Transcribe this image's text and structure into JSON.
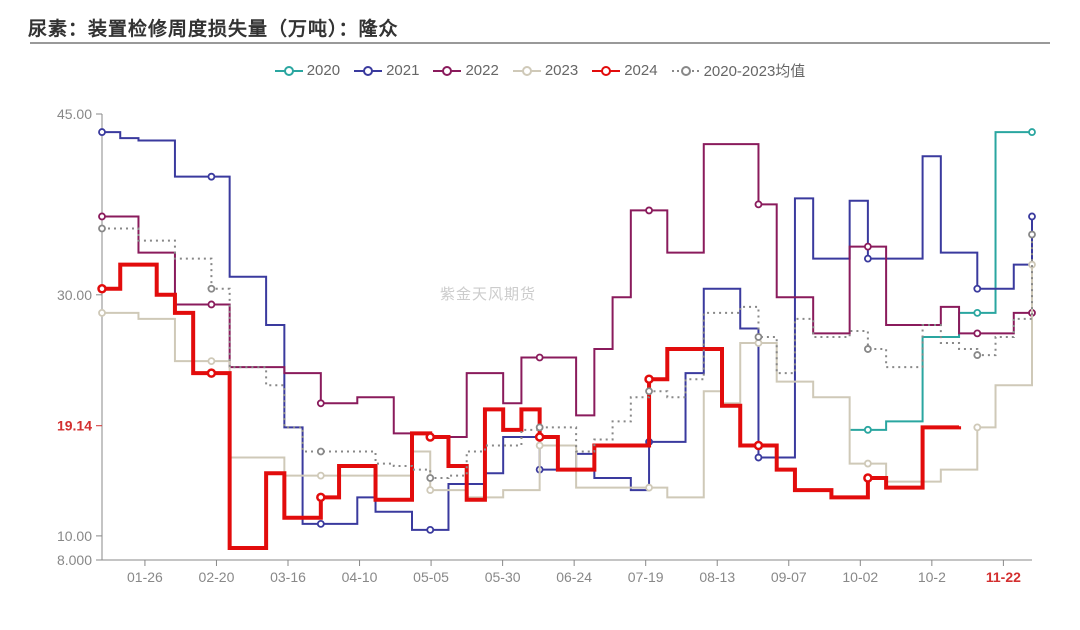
{
  "title": "尿素：装置检修周度损失量（万吨）：隆众",
  "watermark": "紫金天风期货",
  "chart": {
    "type": "line",
    "background_color": "#ffffff",
    "grid_color": "#dddddd",
    "axis_color": "#888888",
    "tick_fontsize": 14,
    "tick_color": "#888888",
    "ylim": [
      8,
      45
    ],
    "yticks": [
      8,
      10,
      19.14,
      30,
      45
    ],
    "ytick_labels": [
      "8.000",
      "10.00",
      "19.14",
      "30.00",
      "45.00"
    ],
    "ytick_colors": [
      "#888888",
      "#888888",
      "#d32f2f",
      "#888888",
      "#888888"
    ],
    "y_highlight": {
      "value": 19.14,
      "label": "19.14",
      "color": "#d32f2f"
    },
    "xticks": [
      "01-26",
      "02-20",
      "03-16",
      "04-10",
      "05-05",
      "05-30",
      "06-24",
      "07-19",
      "08-13",
      "09-07",
      "10-02",
      "10-2",
      "11-22"
    ],
    "x_highlight": {
      "index": 12,
      "label": "11-22",
      "color": "#d32f2f"
    },
    "n_points": 52,
    "series": [
      {
        "name": "2020",
        "color": "#2aa6a0",
        "width": 2,
        "marker": "hollow-circle",
        "step": true,
        "dash": "none",
        "data": [
          null,
          null,
          null,
          null,
          null,
          null,
          null,
          null,
          null,
          null,
          null,
          null,
          null,
          null,
          null,
          null,
          null,
          null,
          null,
          null,
          null,
          null,
          null,
          null,
          null,
          null,
          null,
          null,
          null,
          null,
          null,
          null,
          null,
          null,
          null,
          null,
          null,
          null,
          null,
          null,
          null,
          18.8,
          18.8,
          19.5,
          19.5,
          26.5,
          26.5,
          28.5,
          28.5,
          43.5,
          43.5,
          43.5
        ]
      },
      {
        "name": "2021",
        "color": "#3a3a9e",
        "width": 2,
        "marker": "hollow-circle",
        "step": true,
        "dash": "none",
        "data": [
          43.5,
          43.0,
          42.8,
          42.8,
          39.8,
          39.8,
          39.8,
          31.5,
          31.5,
          27.5,
          19.0,
          11.0,
          11.0,
          11.0,
          13.2,
          12.0,
          12.0,
          10.5,
          10.5,
          14.3,
          14.3,
          15.2,
          18.2,
          18.2,
          15.5,
          15.5,
          16.8,
          14.8,
          14.8,
          13.8,
          17.8,
          17.8,
          23.5,
          30.5,
          30.5,
          27.2,
          16.5,
          16.5,
          38.0,
          33.0,
          33.0,
          37.8,
          33.0,
          33.0,
          33.0,
          41.5,
          33.5,
          33.5,
          30.5,
          30.5,
          32.5,
          36.5
        ]
      },
      {
        "name": "2022",
        "color": "#8a1b5c",
        "width": 2,
        "marker": "hollow-circle",
        "step": true,
        "dash": "none",
        "data": [
          36.5,
          36.5,
          33.5,
          33.5,
          29.2,
          29.2,
          29.2,
          24.0,
          24.0,
          24.0,
          23.5,
          23.5,
          21.0,
          21.0,
          21.5,
          21.5,
          18.5,
          18.5,
          18.2,
          18.2,
          23.5,
          23.5,
          21.0,
          24.8,
          24.8,
          24.8,
          20.0,
          25.5,
          29.8,
          37.0,
          37.0,
          33.5,
          33.5,
          42.5,
          42.5,
          42.5,
          37.5,
          29.8,
          29.8,
          26.8,
          26.8,
          34.0,
          34.0,
          27.5,
          27.5,
          27.5,
          29.0,
          26.8,
          26.8,
          26.8,
          28.5,
          28.5
        ]
      },
      {
        "name": "2023",
        "color": "#cfc9b8",
        "width": 2,
        "marker": "hollow-circle",
        "step": true,
        "dash": "none",
        "data": [
          28.5,
          28.5,
          28.0,
          28.0,
          24.5,
          24.5,
          24.5,
          16.5,
          16.5,
          16.5,
          15.0,
          15.0,
          15.0,
          15.0,
          15.0,
          15.0,
          15.0,
          17.0,
          13.8,
          13.8,
          13.2,
          13.2,
          13.8,
          13.8,
          17.5,
          17.5,
          14.0,
          14.0,
          14.0,
          14.0,
          14.0,
          13.2,
          13.2,
          22.0,
          21.0,
          26.0,
          26.0,
          22.8,
          22.8,
          21.5,
          21.5,
          16.0,
          16.0,
          14.5,
          14.5,
          14.5,
          15.5,
          15.5,
          19.0,
          22.5,
          22.5,
          32.5
        ]
      },
      {
        "name": "2024",
        "color": "#e20c0c",
        "width": 4,
        "marker": "hollow-circle",
        "step": true,
        "dash": "none",
        "data": [
          30.5,
          32.5,
          32.5,
          30.0,
          28.5,
          23.5,
          23.5,
          9.0,
          9.0,
          15.2,
          11.5,
          11.5,
          13.2,
          15.8,
          15.8,
          13.0,
          13.0,
          18.5,
          18.2,
          15.8,
          13.0,
          20.5,
          18.8,
          20.5,
          18.2,
          15.5,
          15.5,
          17.5,
          17.5,
          17.5,
          23.0,
          25.5,
          25.5,
          25.5,
          20.8,
          17.5,
          17.5,
          15.5,
          13.8,
          13.8,
          13.2,
          13.2,
          14.8,
          14.0,
          14.0,
          19.0,
          19.0,
          19.1,
          null,
          null,
          null,
          null
        ]
      },
      {
        "name": "2020-2023均值",
        "color": "#888888",
        "width": 2,
        "marker": "hollow-circle",
        "step": true,
        "dash": "dotted",
        "data": [
          35.5,
          35.5,
          34.5,
          34.5,
          33.0,
          33.0,
          30.5,
          24.0,
          24.0,
          22.5,
          19.0,
          17.0,
          17.0,
          17.0,
          17.0,
          16.0,
          15.8,
          15.5,
          14.8,
          15.0,
          17.0,
          17.5,
          17.5,
          18.8,
          19.0,
          19.0,
          17.0,
          18.0,
          19.5,
          21.5,
          22.0,
          21.5,
          23.0,
          28.5,
          28.5,
          29.0,
          26.5,
          23.5,
          28.0,
          26.5,
          26.5,
          27.0,
          25.5,
          24.0,
          24.0,
          27.5,
          26.0,
          25.5,
          25.0,
          26.5,
          28.0,
          35.0
        ]
      }
    ],
    "legend": {
      "position": "top-center",
      "fontsize": 15,
      "text_color": "#666666",
      "items": [
        "2020",
        "2021",
        "2022",
        "2023",
        "2024",
        "2020-2023均值"
      ]
    }
  }
}
